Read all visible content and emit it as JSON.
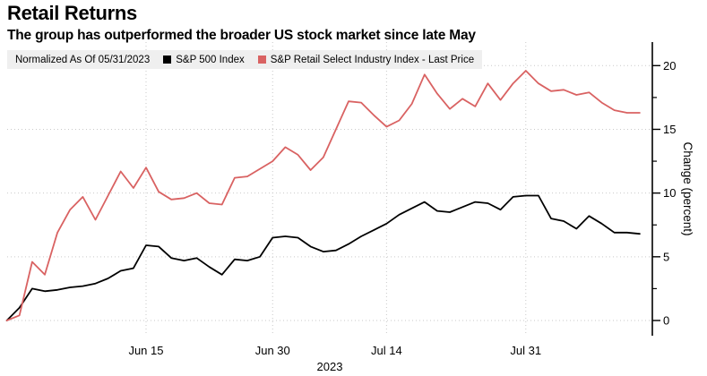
{
  "header": {
    "title": "Retail Returns",
    "subtitle": "The group has outperformed the broader US stock market since late May"
  },
  "legend": {
    "normalized_label": "Normalized As Of 05/31/2023"
  },
  "chart_data": {
    "type": "line",
    "title": "Retail Returns",
    "xlabel": "",
    "ylabel": "Change (percent)",
    "x_year_label": "2023",
    "x_unit": "trading-day index from 05/31/2023",
    "x_ticks": [
      {
        "index": 11,
        "label": "Jun 15"
      },
      {
        "index": 21,
        "label": "Jun 30"
      },
      {
        "index": 30,
        "label": "Jul 14"
      },
      {
        "index": 41,
        "label": "Jul 31"
      }
    ],
    "ylim": [
      -1.2,
      22
    ],
    "y_ticks": [
      0,
      5,
      10,
      15,
      20
    ],
    "y_minor_ticks": [
      2.5,
      7.5,
      12.5,
      17.5
    ],
    "grid": "dotted",
    "legend_position": "top",
    "series": [
      {
        "name": "S&P 500 Index",
        "color": "#000000",
        "values": [
          0.0,
          1.0,
          2.5,
          2.3,
          2.4,
          2.6,
          2.7,
          2.9,
          3.3,
          3.9,
          4.1,
          5.9,
          5.8,
          4.9,
          4.7,
          4.9,
          4.2,
          3.6,
          4.8,
          4.7,
          5.0,
          6.5,
          6.6,
          6.5,
          5.8,
          5.4,
          5.5,
          6.0,
          6.6,
          7.1,
          7.6,
          8.3,
          8.8,
          9.3,
          8.6,
          8.5,
          8.9,
          9.3,
          9.2,
          8.7,
          9.7,
          9.8,
          9.8,
          8.0,
          7.8,
          7.2,
          8.2,
          7.6,
          6.9,
          6.9,
          6.8
        ]
      },
      {
        "name": "S&P Retail Select Industry Index - Last Price",
        "color": "#d96262",
        "values": [
          0.0,
          0.4,
          4.6,
          3.6,
          6.9,
          8.7,
          9.7,
          7.9,
          9.8,
          11.7,
          10.4,
          12.0,
          10.1,
          9.5,
          9.6,
          10.0,
          9.2,
          9.1,
          11.2,
          11.3,
          11.9,
          12.5,
          13.6,
          13.0,
          11.8,
          12.8,
          15.0,
          17.2,
          17.1,
          16.1,
          15.2,
          15.7,
          17.0,
          19.3,
          17.8,
          16.6,
          17.4,
          16.8,
          18.6,
          17.3,
          18.6,
          19.6,
          18.6,
          18.0,
          18.1,
          17.7,
          17.9,
          17.1,
          16.5,
          16.3,
          16.3
        ]
      }
    ]
  }
}
